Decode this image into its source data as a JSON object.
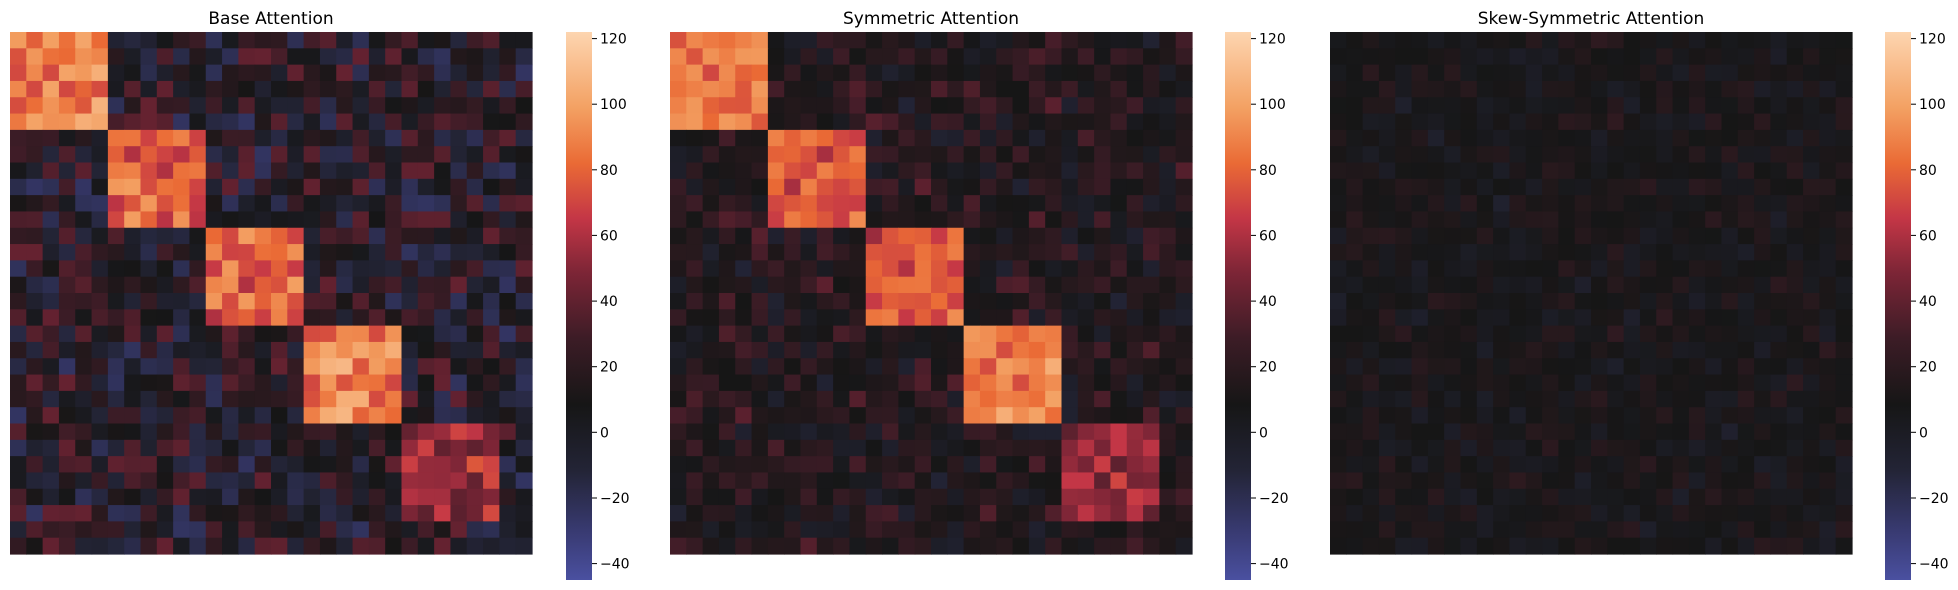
{
  "chart_data": [
    {
      "type": "heatmap",
      "title": "Base Attention",
      "grid_size": 32,
      "block_sizes": [
        6,
        6,
        6,
        6,
        6,
        2
      ],
      "block_peak_values": [
        95,
        85,
        85,
        95,
        62,
        10
      ],
      "off_block_value_range": [
        -40,
        55
      ],
      "colorbar": {
        "vmin": -45,
        "vmax": 122,
        "ticks": [
          120,
          100,
          80,
          60,
          40,
          20,
          0,
          -20,
          -40
        ],
        "center": 10,
        "cmap": "icefire"
      },
      "grid": false
    },
    {
      "type": "heatmap",
      "title": "Symmetric Attention",
      "grid_size": 32,
      "block_sizes": [
        6,
        6,
        6,
        6,
        6,
        2
      ],
      "block_peak_values": [
        95,
        80,
        80,
        95,
        60,
        10
      ],
      "off_block_value_range": [
        -25,
        50
      ],
      "colorbar": {
        "vmin": -45,
        "vmax": 122,
        "ticks": [
          120,
          100,
          80,
          60,
          40,
          20,
          0,
          -20,
          -40
        ],
        "center": 10,
        "cmap": "icefire"
      },
      "grid": false
    },
    {
      "type": "heatmap",
      "title": "Skew-Symmetric Attention",
      "grid_size": 32,
      "block_sizes": [
        6,
        6,
        6,
        6,
        6,
        2
      ],
      "block_peak_values": [
        8,
        8,
        8,
        8,
        8,
        8
      ],
      "off_block_value_range": [
        -20,
        30
      ],
      "colorbar": {
        "vmin": -45,
        "vmax": 122,
        "ticks": [
          120,
          100,
          80,
          60,
          40,
          20,
          0,
          -20,
          -40
        ],
        "center": 10,
        "cmap": "icefire"
      },
      "grid": false
    }
  ]
}
